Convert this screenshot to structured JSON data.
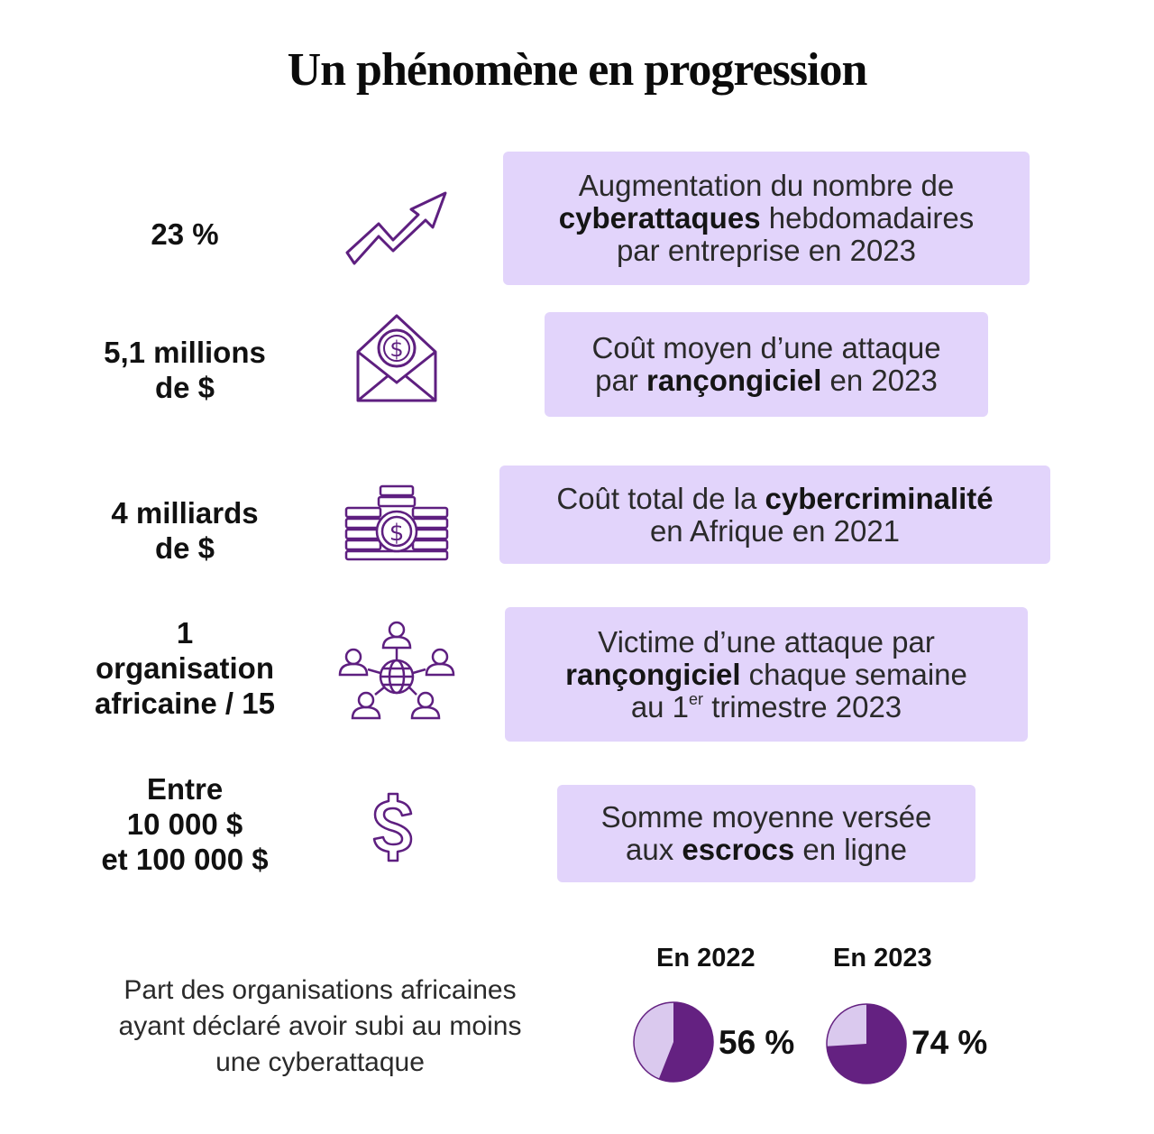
{
  "title": "Un phénomène en progression",
  "rows": [
    {
      "stat_lines": [
        "23 %"
      ],
      "icon": "trend-up-arrow-icon",
      "desc": {
        "t1": "Augmentation du nombre de",
        "b1": "cyberattaques",
        "t2": " hebdomadaires",
        "t3": "par entreprise en 2023"
      }
    },
    {
      "stat_lines": [
        "5,1 millions",
        "de $"
      ],
      "icon": "envelope-dollar-icon",
      "desc": {
        "t1": "Coût moyen d’une attaque",
        "t2": "par ",
        "b1": "rançongiciel",
        "t3": " en 2023"
      }
    },
    {
      "stat_lines": [
        "4 milliards",
        "de $"
      ],
      "icon": "gold-bars-coin-icon",
      "desc": {
        "t1": "Coût total de la ",
        "b1": "cybercriminalité",
        "t2": "en Afrique en 2021"
      }
    },
    {
      "stat_lines": [
        "1",
        "organisation",
        "africaine / 15"
      ],
      "icon": "network-globe-people-icon",
      "desc": {
        "t1": "Victime d’une attaque par",
        "b1": "rançongiciel",
        "t2": " chaque semaine",
        "t3": "au 1",
        "sup": "er",
        "t4": " trimestre 2023"
      }
    },
    {
      "stat_lines": [
        "Entre",
        "10 000 $",
        "et 100 000 $"
      ],
      "icon": "dollar-sign-icon",
      "desc": {
        "t1": "Somme moyenne versée",
        "t2": "aux ",
        "b1": "escrocs",
        "t3": " en ligne"
      }
    }
  ],
  "share": {
    "label_lines": [
      "Part des organisations africaines",
      "ayant déclaré avoir subi au moins",
      "une cyberattaque"
    ]
  },
  "colors": {
    "accent": "#5e1f80",
    "pie_dark": "#642181",
    "pie_light": "#dac9ee",
    "box": "#e2d4fb"
  },
  "chart_data": {
    "type": "pie",
    "categories": [
      "En 2022",
      "En 2023"
    ],
    "values": [
      56,
      74
    ],
    "value_labels": [
      "56 %",
      "74 %"
    ],
    "unit": "%"
  }
}
